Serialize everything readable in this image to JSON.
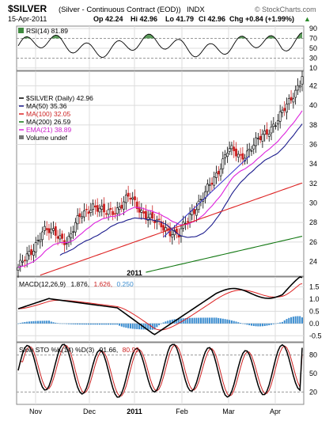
{
  "header": {
    "symbol": "$SILVER",
    "description": "(Silver - Continuous Contract (EOD))",
    "exchange": "INDX",
    "watermark": "© StockCharts.com",
    "date": "15-Apr-2011",
    "open": "Op 42.24",
    "high": "Hi 42.96",
    "low": "Lo 41.79",
    "close": "Cl 42.96",
    "change": "Chg +0.84 (+1.99%)",
    "change_arrow": "▲"
  },
  "rsi_panel": {
    "label": "RSI(14) 81.89",
    "ticks": [
      "90",
      "70",
      "50",
      "30",
      "10"
    ]
  },
  "price_panel": {
    "legend": {
      "main": "$SILVER (Daily) 42.96",
      "ma50": "MA(50) 35.36",
      "ma100": "MA(100) 32.05",
      "ma200": "MA(200) 26.59",
      "ema21": "EMA(21) 38.89",
      "volume": "Volume undef"
    },
    "ticks": [
      "42",
      "40",
      "38",
      "36",
      "34",
      "32",
      "30",
      "28",
      "26",
      "24"
    ]
  },
  "macd_panel": {
    "label_prefix": "MACD(12,26,9)",
    "macd": "1.876,",
    "signal": "1.626,",
    "hist": "0.250",
    "ticks": [
      "1.5",
      "1.0",
      "0.5",
      "0.0",
      "-0.5"
    ]
  },
  "sto_panel": {
    "label_prefix": "Slow STO %K(14) %D(3)",
    "k": "91.66,",
    "d": "80.92",
    "ticks": [
      "80",
      "50",
      "20"
    ]
  },
  "x_axis": {
    "labels": [
      "Nov",
      "Dec",
      "2011",
      "Feb",
      "Mar",
      "Apr"
    ]
  },
  "colors": {
    "ma50": "#1a1a8c",
    "ma100": "#dd2222",
    "ma200": "#117711",
    "ema21": "#dd22dd",
    "macd": "#000000",
    "signal": "#dd2222",
    "hist": "#3a8ccf",
    "rsi_fill": "#3f8a3f"
  },
  "chart_data": {
    "type": "candlestick",
    "title": "$SILVER (Silver - Continuous Contract (EOD))",
    "x": [
      "Nov",
      "Dec",
      "2011",
      "Feb",
      "Mar",
      "Apr"
    ],
    "ylim": [
      22.5,
      43.5
    ],
    "close_series": [
      {
        "x": "Nov",
        "y": 23.4
      },
      {
        "x": "Nov",
        "y": 24.8
      },
      {
        "x": "Nov",
        "y": 27.3
      },
      {
        "x": "Nov",
        "y": 26.8
      },
      {
        "x": "Nov",
        "y": 26.1
      },
      {
        "x": "Dec",
        "y": 28.6
      },
      {
        "x": "Dec",
        "y": 29.8
      },
      {
        "x": "Dec",
        "y": 28.9
      },
      {
        "x": "Dec",
        "y": 29.4
      },
      {
        "x": "2011",
        "y": 30.6
      },
      {
        "x": "2011",
        "y": 29.2
      },
      {
        "x": "2011",
        "y": 28.1
      },
      {
        "x": "2011",
        "y": 27.4
      },
      {
        "x": "Feb",
        "y": 26.6
      },
      {
        "x": "Feb",
        "y": 29.0
      },
      {
        "x": "Feb",
        "y": 30.6
      },
      {
        "x": "Feb",
        "y": 32.8
      },
      {
        "x": "Mar",
        "y": 35.6
      },
      {
        "x": "Mar",
        "y": 34.6
      },
      {
        "x": "Mar",
        "y": 35.9
      },
      {
        "x": "Mar",
        "y": 37.0
      },
      {
        "x": "Apr",
        "y": 38.6
      },
      {
        "x": "Apr",
        "y": 40.3
      },
      {
        "x": "Apr",
        "y": 42.96
      }
    ],
    "moving_averages": [
      {
        "name": "MA(50)",
        "last": 35.36
      },
      {
        "name": "MA(100)",
        "last": 32.05
      },
      {
        "name": "MA(200)",
        "last": 26.59
      },
      {
        "name": "EMA(21)",
        "last": 38.89
      }
    ],
    "rsi": {
      "period": 14,
      "last": 81.89,
      "ylim": [
        10,
        90
      ]
    },
    "macd": {
      "params": "12,26,9",
      "macd": 1.876,
      "signal": 1.626,
      "histogram": 0.25,
      "ylim": [
        -0.6,
        1.9
      ]
    },
    "slow_sto": {
      "k_period": 14,
      "d_period": 3,
      "k": 91.66,
      "d": 80.92,
      "ylim": [
        0,
        100
      ]
    }
  }
}
